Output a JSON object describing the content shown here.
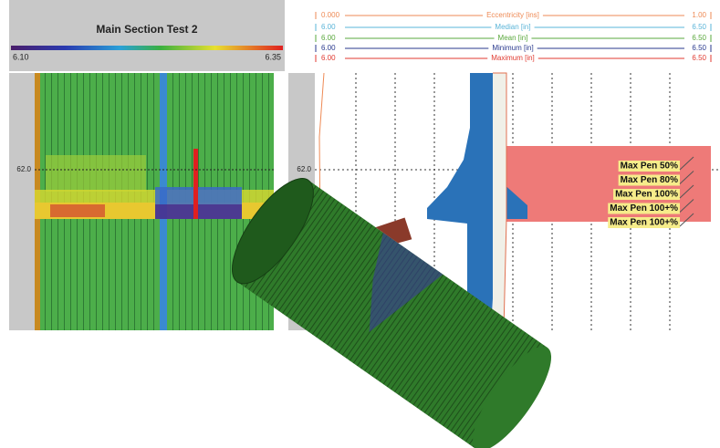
{
  "left_panel": {
    "title": "Main Section Test 2",
    "scale_min": "6.10",
    "scale_max": "6.35",
    "depth_label": "62.0"
  },
  "right_panel": {
    "depth_label": "62.0",
    "legend": [
      {
        "min": "0.000",
        "name": "Eccentricity [ins]",
        "max": "1.00",
        "color": "#ee8a55"
      },
      {
        "min": "6.00",
        "name": "Median [in]",
        "max": "6.50",
        "color": "#5ab4d8"
      },
      {
        "min": "6.00",
        "name": "Mean [in]",
        "max": "6.50",
        "color": "#5aa83c"
      },
      {
        "min": "6.00",
        "name": "Minimum [in]",
        "max": "6.50",
        "color": "#2a3a8e"
      },
      {
        "min": "6.00",
        "name": "Maximum [in]",
        "max": "6.50",
        "color": "#e03a30"
      }
    ],
    "annotations": [
      "Max Pen 50%",
      "Max Pen 80%",
      "Max Pen 100%",
      "Max Pen 100+%",
      "Max Pen 100+%"
    ]
  }
}
